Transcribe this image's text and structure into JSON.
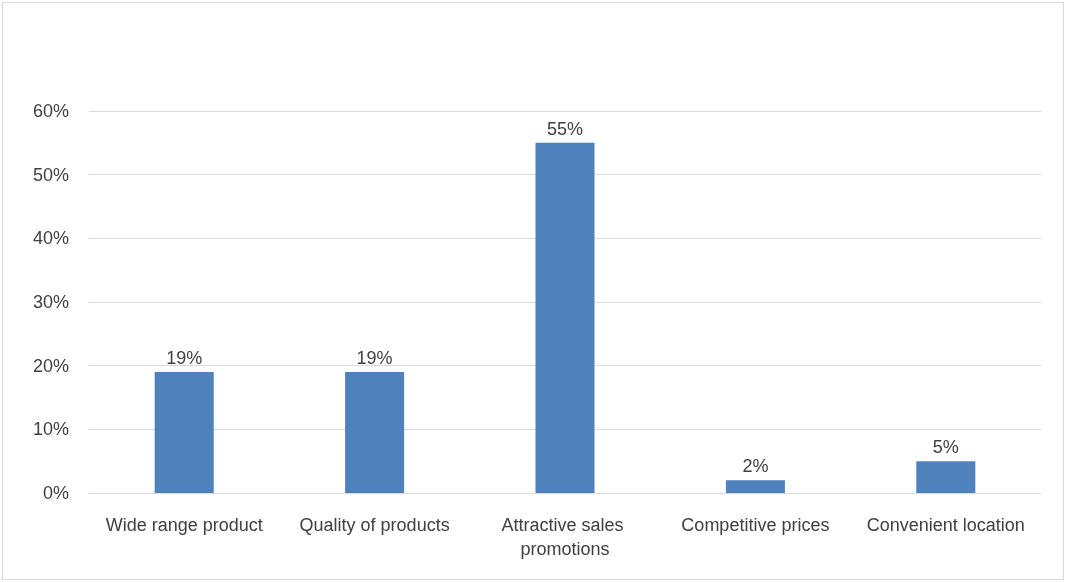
{
  "chart_data": {
    "type": "bar",
    "categories": [
      "Wide range product",
      "Quality of products",
      "Attractive sales promotions",
      "Competitive prices",
      "Convenient location"
    ],
    "values": [
      19,
      19,
      55,
      2,
      5
    ],
    "value_labels": [
      "19%",
      "19%",
      "55%",
      "2%",
      "5%"
    ],
    "color": "#4f81bd",
    "ylim": [
      0,
      60
    ],
    "yticks": [
      {
        "value": 0,
        "label": "0%"
      },
      {
        "value": 10,
        "label": "10%"
      },
      {
        "value": 20,
        "label": "20%"
      },
      {
        "value": 30,
        "label": "30%"
      },
      {
        "value": 40,
        "label": "40%"
      },
      {
        "value": 50,
        "label": "50%"
      },
      {
        "value": 60,
        "label": "60%"
      }
    ],
    "grid": "y"
  }
}
